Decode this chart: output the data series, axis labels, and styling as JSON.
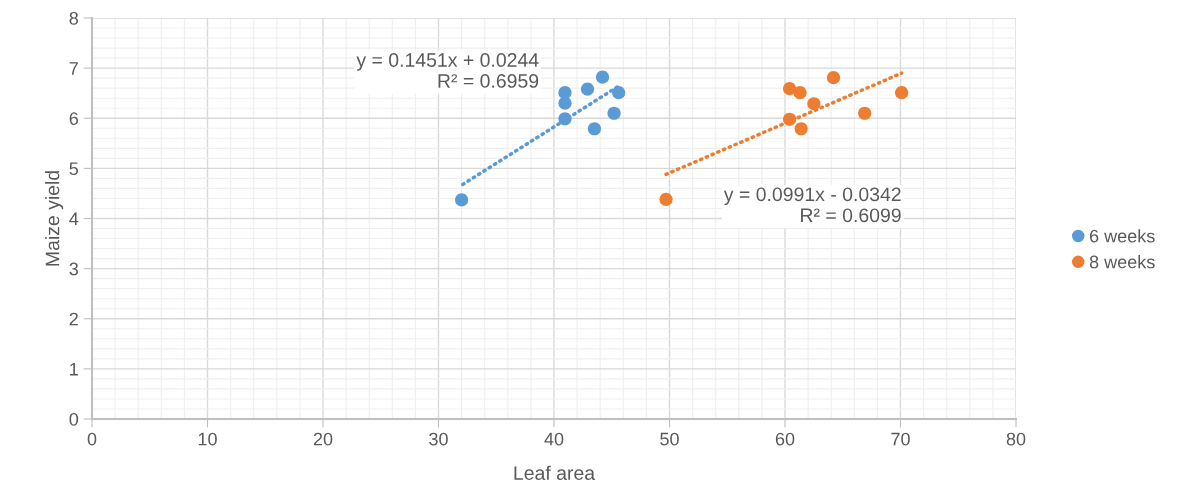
{
  "chart_data": {
    "type": "scatter",
    "xlabel": "Leaf area",
    "ylabel": "Maize yield",
    "xlim": [
      0,
      80
    ],
    "xticks": [
      0,
      10,
      20,
      30,
      40,
      50,
      60,
      70,
      80
    ],
    "ylim": [
      0,
      8
    ],
    "yticks": [
      0,
      1,
      2,
      3,
      4,
      5,
      6,
      7,
      8
    ],
    "grid": true,
    "legend": "right",
    "marker": "circle",
    "series": [
      {
        "name": "6 weeks",
        "color": "#5b9bd5",
        "x": [
          32.0,
          40.95,
          40.95,
          40.95,
          42.9,
          44.2,
          45.6,
          45.2,
          43.5
        ],
        "values": [
          4.37,
          6.51,
          6.3,
          5.99,
          6.58,
          6.82,
          6.51,
          6.1,
          5.79
        ]
      },
      {
        "name": "8 weeks",
        "color": "#ed7d31",
        "x": [
          49.7,
          60.4,
          61.3,
          62.5,
          60.4,
          61.4,
          64.2,
          66.9,
          70.1
        ],
        "values": [
          4.38,
          6.59,
          6.51,
          6.29,
          5.98,
          5.79,
          6.81,
          6.1,
          6.51
        ]
      },
      {
        "type": "line",
        "color": "#5b9bd5",
        "line_style": "dotted",
        "marker": "none",
        "x": [
          32.1,
          45.8
        ],
        "values": [
          4.68,
          6.67
        ]
      },
      {
        "type": "line",
        "color": "#ed7d31",
        "line_style": "dotted",
        "marker": "none",
        "x": [
          49.7,
          70.1
        ],
        "values": [
          4.88,
          6.9
        ]
      }
    ],
    "annotations": [
      "y = 0.1451x + 0.0244\nR² = 0.6959",
      "y = 0.0991x - 0.0342\nR² = 0.6099"
    ]
  }
}
